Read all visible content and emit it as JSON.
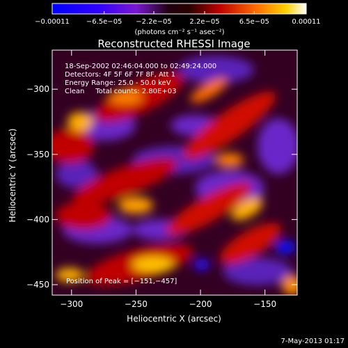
{
  "chart_data": {
    "type": "heatmap",
    "title": "Reconstructed RHESSI Image",
    "xlabel": "Heliocentric X (arcsec)",
    "ylabel": "Heliocentric Y (arcsec)",
    "xlim": [
      -315,
      -125
    ],
    "ylim": [
      -458,
      -270
    ],
    "x_ticks": [
      -300,
      -250,
      -200,
      -150
    ],
    "x_tick_labels": [
      "−300",
      "−250",
      "−200",
      "−150"
    ],
    "y_ticks": [
      -300,
      -350,
      -400,
      -450
    ],
    "y_tick_labels": [
      "−300",
      "−350",
      "−400",
      "−450"
    ],
    "colorbar": {
      "range": [
        -0.00011,
        0.00011
      ],
      "ticks": [
        -0.00011,
        -6.5e-05,
        -2.2e-05,
        2.2e-05,
        6.5e-05,
        0.00011
      ],
      "tick_labels": [
        "−0.00011",
        "−6.5e−05",
        "−2.2e−05",
        "2.2e−05",
        "6.5e−05",
        "0.00011"
      ],
      "units_label": "(photons cm⁻² s⁻¹ asec⁻²)"
    },
    "info": {
      "line1": "18-Sep-2002 02:46:04.000 to 02:49:24.000",
      "line2": "Detectors: 4F 5F 6F 7F 8F, Att 1",
      "line3": "Energy Range: 25.0 - 50.0 keV",
      "line4": "Clean     Total counts: 2.80E+03"
    },
    "peak_label": "Position of Peak = [−151,−457]",
    "peak": [
      -151,
      -457
    ]
  },
  "footer_date": "7-May-2013 01:17"
}
